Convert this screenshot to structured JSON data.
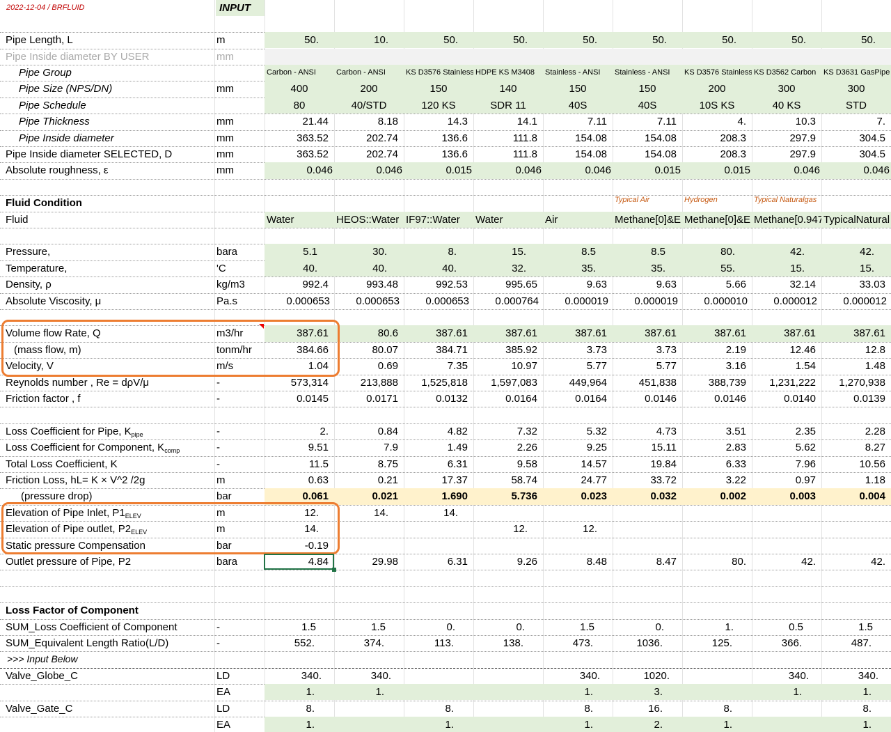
{
  "header": {
    "date": "2022-12-04 / BRFLUID",
    "input_label": "INPUT"
  },
  "rows": [
    {
      "label": "Pipe Length, L",
      "unit": "m",
      "values": [
        "50.",
        "10.",
        "50.",
        "50.",
        "50.",
        "50.",
        "50.",
        "50.",
        "50."
      ]
    },
    {
      "label": "Pipe Inside diameter BY USER",
      "unit": "mm"
    },
    {
      "label": "Pipe Group",
      "values": [
        "Carbon - ANSI",
        "Carbon - ANSI",
        "KS D3576 Stainless",
        "HDPE KS M3408",
        "Stainless - ANSI",
        "Stainless - ANSI",
        "KS D3576 Stainless",
        "KS D3562 Carbon",
        "KS D3631 GasPipe"
      ]
    },
    {
      "label": "Pipe Size (NPS/DN)",
      "unit": "mm",
      "values": [
        "400",
        "200",
        "150",
        "140",
        "150",
        "150",
        "200",
        "300",
        "300"
      ]
    },
    {
      "label": "Pipe Schedule",
      "values": [
        "80",
        "40/STD",
        "120 KS",
        "SDR 11",
        "40S",
        "40S",
        "10S KS",
        "40 KS",
        "STD"
      ]
    },
    {
      "label": "Pipe Thickness",
      "unit": "mm",
      "values": [
        "21.44",
        "8.18",
        "14.3",
        "14.1",
        "7.11",
        "7.11",
        "4.",
        "10.3",
        "7."
      ]
    },
    {
      "label": "Pipe Inside diameter",
      "unit": "mm",
      "values": [
        "363.52",
        "202.74",
        "136.6",
        "111.8",
        "154.08",
        "154.08",
        "208.3",
        "297.9",
        "304.5"
      ]
    },
    {
      "label": "Pipe Inside diameter SELECTED, D",
      "unit": "mm",
      "values": [
        "363.52",
        "202.74",
        "136.6",
        "111.8",
        "154.08",
        "154.08",
        "208.3",
        "297.9",
        "304.5"
      ]
    },
    {
      "label": "Absolute roughness, ε",
      "unit": "mm",
      "values": [
        "0.046",
        "0.046",
        "0.015",
        "0.046",
        "0.046",
        "0.015",
        "0.015",
        "0.046",
        "0.046"
      ]
    },
    {
      "label": "Fluid Condition",
      "notes": [
        null,
        null,
        null,
        null,
        null,
        "Typical Air",
        "Hydrogen",
        "Typical Naturalgas",
        null
      ]
    },
    {
      "label": "Fluid",
      "values": [
        "Water",
        "HEOS::Water",
        "IF97::Water",
        "Water",
        "Air",
        "Methane[0]&E",
        "Methane[0]&E",
        "Methane[0.947",
        "TypicalNatural"
      ]
    },
    {
      "label": "Pressure,",
      "unit": "bara",
      "values": [
        "5.1",
        "30.",
        "8.",
        "15.",
        "8.5",
        "8.5",
        "80.",
        "42.",
        "42."
      ]
    },
    {
      "label": "Temperature,",
      "unit": "'C",
      "values": [
        "40.",
        "40.",
        "40.",
        "32.",
        "35.",
        "35.",
        "55.",
        "15.",
        "15."
      ]
    },
    {
      "label": "Density, ρ",
      "unit": "kg/m3",
      "values": [
        "992.4",
        "993.48",
        "992.53",
        "995.65",
        "9.63",
        "9.63",
        "5.66",
        "32.14",
        "33.03"
      ]
    },
    {
      "label": "Absolute Viscosity, μ",
      "unit": "Pa.s",
      "values": [
        "0.000653",
        "0.000653",
        "0.000653",
        "0.000764",
        "0.000019",
        "0.000019",
        "0.000010",
        "0.000012",
        "0.000012"
      ]
    },
    {
      "label": "Volume flow Rate, Q",
      "unit": "m3/hr",
      "values": [
        "387.61",
        "80.6",
        "387.61",
        "387.61",
        "387.61",
        "387.61",
        "387.61",
        "387.61",
        "387.61"
      ]
    },
    {
      "label": "(mass flow, m)",
      "unit": "tonm/hr",
      "values": [
        "384.66",
        "80.07",
        "384.71",
        "385.92",
        "3.73",
        "3.73",
        "2.19",
        "12.46",
        "12.8"
      ]
    },
    {
      "label": "Velocity,  V",
      "unit": "m/s",
      "values": [
        "1.04",
        "0.69",
        "7.35",
        "10.97",
        "5.77",
        "5.77",
        "3.16",
        "1.54",
        "1.48"
      ]
    },
    {
      "label": "Reynolds number , Re = dρV/μ",
      "unit": "-",
      "values": [
        "573,314",
        "213,888",
        "1,525,818",
        "1,597,083",
        "449,964",
        "451,838",
        "388,739",
        "1,231,222",
        "1,270,938"
      ]
    },
    {
      "label": "Friction factor , f",
      "unit": "-",
      "values": [
        "0.0145",
        "0.0171",
        "0.0132",
        "0.0164",
        "0.0164",
        "0.0146",
        "0.0146",
        "0.0140",
        "0.0139"
      ]
    },
    {
      "label": "Loss Coefficient for Pipe, K",
      "sub": "pipe",
      "unit": "-",
      "values": [
        "2.",
        "0.84",
        "4.82",
        "7.32",
        "5.32",
        "4.73",
        "3.51",
        "2.35",
        "2.28"
      ]
    },
    {
      "label": "Loss Coefficient for Component, K",
      "sub": "comp",
      "unit": "-",
      "values": [
        "9.51",
        "7.9",
        "1.49",
        "2.26",
        "9.25",
        "15.11",
        "2.83",
        "5.62",
        "8.27"
      ]
    },
    {
      "label": "Total Loss Coefficient, K",
      "unit": "-",
      "values": [
        "11.5",
        "8.75",
        "6.31",
        "9.58",
        "14.57",
        "19.84",
        "6.33",
        "7.96",
        "10.56"
      ]
    },
    {
      "label": "Friction Loss, hL= K × V^2 /2g",
      "unit": "m",
      "values": [
        "0.63",
        "0.21",
        "17.37",
        "58.74",
        "24.77",
        "33.72",
        "3.22",
        "0.97",
        "1.18"
      ]
    },
    {
      "label": "(pressure drop)",
      "unit": "bar",
      "values": [
        "0.061",
        "0.021",
        "1.690",
        "5.736",
        "0.023",
        "0.032",
        "0.002",
        "0.003",
        "0.004"
      ]
    },
    {
      "label": "Elevation of Pipe Inlet, P1",
      "sub": "ELEV",
      "unit": "m",
      "values": [
        "12.",
        "14.",
        "14.",
        null,
        null,
        null,
        null,
        null,
        null
      ]
    },
    {
      "label": "Elevation of Pipe outlet, P2",
      "sub": "ELEV",
      "unit": "m",
      "values": [
        "14.",
        null,
        null,
        "12.",
        "12.",
        null,
        null,
        null,
        null
      ]
    },
    {
      "label": "Static pressure Compensation",
      "unit": "bar",
      "values": [
        "-0.19",
        null,
        null,
        null,
        null,
        null,
        null,
        null,
        null
      ]
    },
    {
      "label": "Outlet pressure of Pipe, P2",
      "unit": "bara",
      "values": [
        "4.84",
        "29.98",
        "6.31",
        "9.26",
        "8.48",
        "8.47",
        "80.",
        "42.",
        "42."
      ]
    },
    {
      "label": "Loss Factor of Component"
    },
    {
      "label": "SUM_Loss Coefficient of Component",
      "unit": "-",
      "values": [
        "1.5",
        "1.5",
        "0.",
        "0.",
        "1.5",
        "0.",
        "1.",
        "0.5",
        "1.5"
      ]
    },
    {
      "label": "SUM_Equivalent Length Ratio(L/D)",
      "unit": "-",
      "values": [
        "552.",
        "374.",
        "113.",
        "138.",
        "473.",
        "1036.",
        "125.",
        "366.",
        "487."
      ]
    },
    {
      "label": ">>> Input Below"
    },
    {
      "label": "Valve_Globe_C",
      "unit": "LD",
      "values": [
        "340.",
        "340.",
        null,
        null,
        "340.",
        "1020.",
        null,
        "340.",
        "340."
      ]
    },
    {
      "unit": "EA",
      "values": [
        "1.",
        "1.",
        null,
        null,
        "1.",
        "3.",
        null,
        "1.",
        "1."
      ]
    },
    {
      "label": "Valve_Gate_C",
      "unit": "LD",
      "values": [
        "8.",
        null,
        "8.",
        null,
        "8.",
        "16.",
        "8.",
        null,
        "8."
      ]
    },
    {
      "unit": "EA",
      "values": [
        "1.",
        null,
        "1.",
        null,
        "1.",
        "2.",
        "1.",
        null,
        "1."
      ]
    }
  ]
}
